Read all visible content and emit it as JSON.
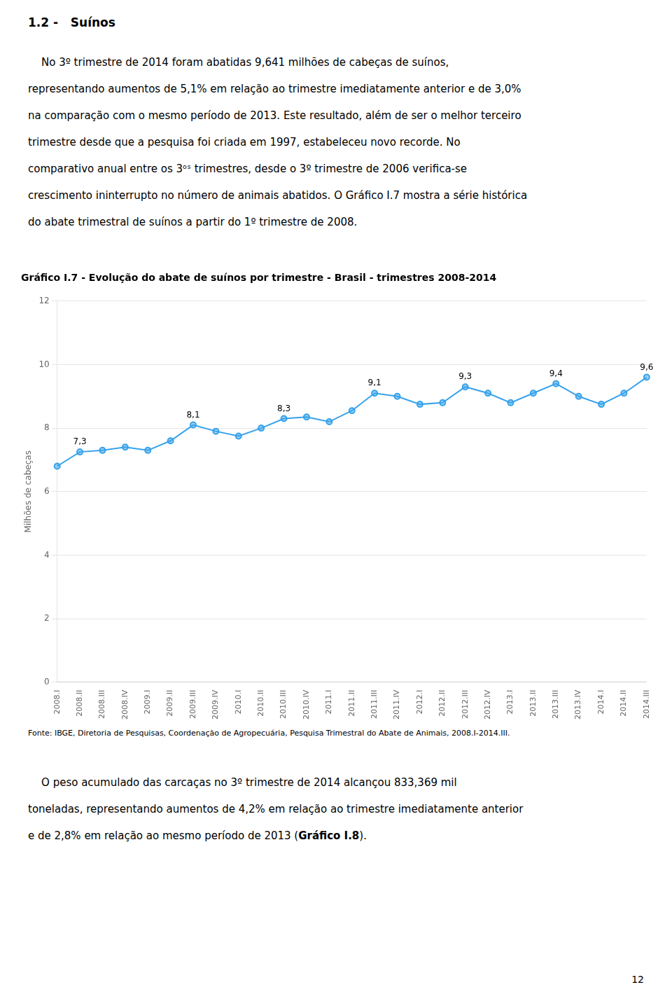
{
  "title_section": "1.2 -   Suínos",
  "para1_lines": [
    "    No 3º trimestre de 2014 foram abatidas 9,641 milhões de cabeças de suínos,",
    "representando aumentos de 5,1% em relação ao trimestre imediatamente anterior e de 3,0%",
    "na comparação com o mesmo período de 2013. Este resultado, além de ser o melhor terceiro",
    "trimestre desde que a pesquisa foi criada em 1997, estabeleceu novo recorde. No",
    "comparativo anual entre os 3ᵒˢ trimestres, desde o 3º trimestre de 2006 verifica-se",
    "crescimento ininterrupto no número de animais abatidos. O Gráfico I.7 mostra a série histórica",
    "do abate trimestral de suínos a partir do 1º trimestre de 2008."
  ],
  "source": "Fonte: IBGE, Diretoria de Pesquisas, Coordenação de Agropecuária, Pesquisa Trimestral do Abate de Animais, 2008.I-2014.III.",
  "para2_lines": [
    "    O peso acumulado das carcaças no 3º trimestre de 2014 alcançou 833,369 mil",
    "toneladas, representando aumentos de 4,2% em relação ao trimestre imediatamente anterior",
    "e de 2,8% em relação ao mesmo período de 2013 (Gráfico I.8)."
  ],
  "bold_phrase": "Gráfico I.8",
  "page_number": "12",
  "chart_data": {
    "type": "line",
    "title": "Gráfico I.7 - Evolução do abate de suínos por trimestre - Brasil - trimestres 2008-2014",
    "y_label": "Milhões de cabeças",
    "categories": [
      "2008.I",
      "2008.II",
      "2008.III",
      "2008.IV",
      "2009.I",
      "2009.II",
      "2009.III",
      "2009.IV",
      "2010.I",
      "2010.II",
      "2010.III",
      "2010.IV",
      "2011.I",
      "2011.II",
      "2011.III",
      "2011.IV",
      "2012.I",
      "2012.II",
      "2012.III",
      "2012.IV",
      "2013.I",
      "2013.II",
      "2013.III",
      "2013.IV",
      "2014.I",
      "2014.II",
      "2014.III"
    ],
    "values": [
      6.8,
      7.25,
      7.3,
      7.4,
      7.3,
      7.6,
      8.1,
      7.9,
      7.75,
      8.0,
      8.3,
      8.35,
      8.2,
      8.55,
      9.1,
      9.0,
      8.75,
      8.8,
      9.3,
      9.1,
      8.8,
      9.1,
      9.4,
      9.0,
      8.75,
      9.1,
      9.6
    ],
    "value_labels": [
      null,
      "7,3",
      null,
      null,
      null,
      null,
      "8,1",
      null,
      null,
      null,
      "8,3",
      null,
      null,
      null,
      "9,1",
      null,
      null,
      null,
      "9,3",
      null,
      null,
      null,
      "9,4",
      null,
      null,
      null,
      "9,6"
    ],
    "ylim": [
      0,
      12
    ],
    "yticks": [
      0,
      2,
      4,
      6,
      8,
      10,
      12
    ],
    "grid": true,
    "marker": "circle"
  }
}
